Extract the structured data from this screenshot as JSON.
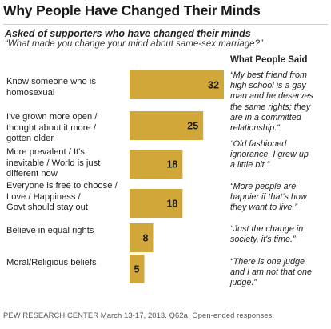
{
  "title": "Why People Have Changed Their Minds",
  "subtitle": "Asked of supporters who have changed their minds",
  "question": "“What made you change your mind about same-sex marriage?”",
  "quotes_header": "What People Said",
  "source": "PEW RESEARCH CENTER March 13-17, 2013. Q62a. Open-ended responses.",
  "colors": {
    "bar": "#d2a73a",
    "label_text": "#1a1a1a"
  },
  "chart_data": {
    "type": "bar",
    "orientation": "horizontal",
    "categories": [
      "Know someone who is homosexual",
      "I've grown more open / thought about it more / gotten older",
      "More prevalent / It's inevitable / World is just different now",
      "Everyone is free to choose / Love / Happiness / Govt should stay out",
      "Believe in equal rights",
      "Moral/Religious beliefs"
    ],
    "values": [
      32,
      25,
      18,
      18,
      8,
      5
    ],
    "xlim": [
      0,
      32
    ],
    "grid": false,
    "legend": "none"
  },
  "rows": [
    {
      "label_lines": [
        "Know someone who is",
        "homosexual"
      ],
      "quote_lines": [
        "“My best friend from",
        "high school is a gay",
        "man and he deserves",
        "the same rights; they",
        "are in a committed",
        "relationship.”"
      ]
    },
    {
      "label_lines": [
        "I've grown more open /",
        "thought about it more /",
        "gotten older"
      ],
      "quote_lines": []
    },
    {
      "label_lines": [
        "More prevalent / It's",
        "inevitable / World is just",
        "different now"
      ],
      "quote_lines": [
        "“Old fashioned",
        "ignorance, I grew up",
        "a little bit.”"
      ]
    },
    {
      "label_lines": [
        "Everyone is free to choose /",
        "Love / Happiness /",
        "Govt should stay out"
      ],
      "quote_lines": [
        "“More people are",
        "happier if that's how",
        "they want to live.”"
      ]
    },
    {
      "label_lines": [
        "Believe in equal rights"
      ],
      "quote_lines": [
        "“Just the change in",
        "society, it's time.”"
      ]
    },
    {
      "label_lines": [
        "Moral/Religious beliefs"
      ],
      "quote_lines": [
        "“There is one judge",
        "and I am not that one",
        "judge.”"
      ]
    }
  ]
}
